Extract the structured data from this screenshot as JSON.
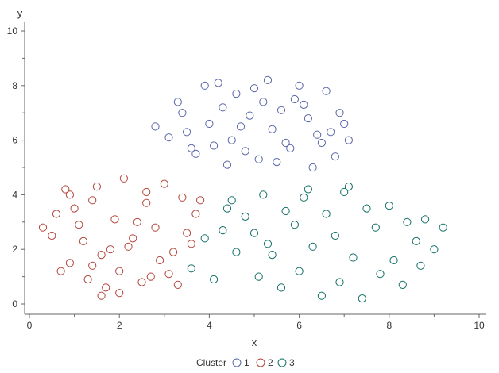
{
  "chart_data": {
    "type": "scatter",
    "title": "",
    "xlabel": "x",
    "ylabel": "y",
    "xlim": [
      0,
      10
    ],
    "ylim": [
      0,
      10
    ],
    "x_ticks": [
      "0",
      "2",
      "4",
      "6",
      "8",
      "10"
    ],
    "y_ticks": [
      "0",
      "2",
      "4",
      "6",
      "8",
      "10"
    ],
    "marker": "open-circle",
    "grid": false,
    "legend": {
      "title": "Cluster",
      "placement": "bottom-center",
      "entries": [
        "1",
        "2",
        "3"
      ]
    },
    "series": [
      {
        "name": "1",
        "color": "#5a66a8",
        "x": [
          4.2,
          3.3,
          5.3,
          6.6,
          4.9,
          5.9,
          3.5,
          4.6,
          6.2,
          5.6,
          3.1,
          4.8,
          6.4,
          5.0,
          6.8,
          4.0,
          7.1,
          2.8,
          5.1,
          5.7,
          6.3,
          4.5,
          6.0,
          3.7,
          4.3,
          5.4,
          6.9,
          4.4,
          5.8,
          6.5,
          3.4,
          4.7,
          5.2,
          6.1,
          7.0,
          3.9,
          5.5,
          6.7,
          4.1,
          3.6
        ],
        "y": [
          8.1,
          7.4,
          8.2,
          7.8,
          6.9,
          7.5,
          6.3,
          7.7,
          6.8,
          7.1,
          6.1,
          5.6,
          6.2,
          7.9,
          5.4,
          6.6,
          6.0,
          6.5,
          5.3,
          5.9,
          5.0,
          6.0,
          8.0,
          5.5,
          7.2,
          6.4,
          7.0,
          5.1,
          5.7,
          5.9,
          7.0,
          6.5,
          7.4,
          7.3,
          6.6,
          8.0,
          5.2,
          6.3,
          5.8,
          5.7
        ]
      },
      {
        "name": "2",
        "color": "#b3463c",
        "x": [
          0.8,
          2.1,
          1.4,
          3.0,
          1.1,
          2.6,
          0.5,
          1.9,
          3.4,
          2.3,
          1.6,
          0.9,
          2.8,
          3.7,
          1.3,
          2.0,
          0.3,
          1.7,
          3.2,
          2.5,
          1.0,
          2.2,
          3.5,
          1.5,
          0.7,
          2.9,
          1.2,
          2.4,
          3.8,
          1.8,
          0.6,
          2.7,
          3.1,
          1.4,
          2.0,
          3.6,
          0.9,
          2.6,
          1.6,
          3.3
        ],
        "y": [
          4.2,
          4.6,
          3.8,
          4.4,
          2.9,
          3.7,
          2.5,
          3.1,
          3.9,
          2.4,
          1.8,
          1.5,
          2.8,
          3.3,
          0.9,
          1.2,
          2.8,
          0.6,
          1.9,
          0.8,
          3.5,
          2.1,
          2.6,
          4.3,
          1.2,
          1.6,
          2.3,
          3.0,
          3.8,
          2.0,
          3.3,
          1.0,
          1.1,
          1.4,
          0.4,
          2.2,
          4.0,
          4.1,
          0.3,
          0.7
        ]
      },
      {
        "name": "3",
        "color": "#137067",
        "x": [
          4.5,
          5.2,
          6.1,
          7.0,
          8.0,
          8.8,
          9.2,
          4.8,
          5.7,
          6.6,
          7.5,
          8.4,
          3.9,
          4.3,
          5.0,
          5.9,
          6.8,
          7.7,
          8.6,
          9.0,
          3.6,
          4.6,
          5.4,
          6.3,
          7.2,
          8.1,
          4.1,
          5.1,
          6.0,
          6.9,
          7.8,
          8.7,
          4.4,
          5.6,
          6.5,
          7.4,
          8.3,
          6.2,
          7.1,
          5.3
        ],
        "y": [
          3.8,
          4.0,
          3.9,
          4.1,
          3.6,
          3.1,
          2.8,
          3.2,
          3.4,
          3.3,
          3.5,
          3.0,
          2.4,
          2.7,
          2.6,
          2.9,
          2.5,
          2.8,
          2.3,
          2.0,
          1.3,
          1.9,
          1.8,
          2.1,
          1.7,
          1.6,
          0.9,
          1.0,
          1.2,
          0.8,
          1.1,
          1.4,
          3.5,
          0.6,
          0.3,
          0.2,
          0.7,
          4.2,
          4.3,
          2.2
        ]
      }
    ]
  }
}
